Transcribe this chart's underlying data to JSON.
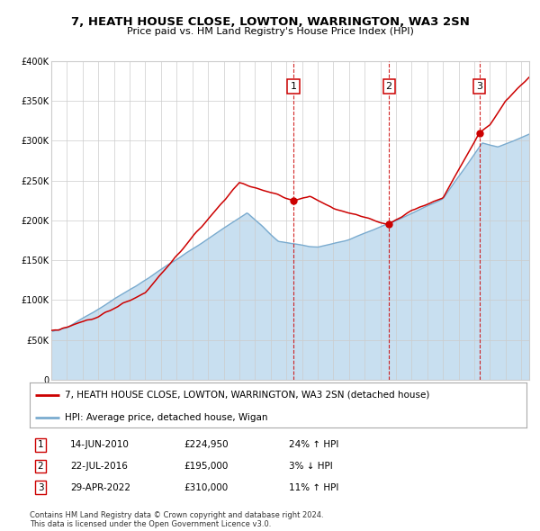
{
  "title": "7, HEATH HOUSE CLOSE, LOWTON, WARRINGTON, WA3 2SN",
  "subtitle": "Price paid vs. HM Land Registry's House Price Index (HPI)",
  "ylim": [
    0,
    400000
  ],
  "yticks": [
    0,
    50000,
    100000,
    150000,
    200000,
    250000,
    300000,
    350000,
    400000
  ],
  "ytick_labels": [
    "0",
    "£50K",
    "£100K",
    "£150K",
    "£200K",
    "£250K",
    "£300K",
    "£350K",
    "£400K"
  ],
  "xlim_start": 1995,
  "xlim_end": 2025.5,
  "sale_date_nums": [
    2010.45,
    2016.55,
    2022.33
  ],
  "sale_prices": [
    224950,
    195000,
    310000
  ],
  "sale_labels": [
    "1",
    "2",
    "3"
  ],
  "sale_info": [
    {
      "label": "1",
      "date": "14-JUN-2010",
      "price": "£224,950",
      "hpi": "24% ↑ HPI"
    },
    {
      "label": "2",
      "date": "22-JUL-2016",
      "price": "£195,000",
      "hpi": "3% ↓ HPI"
    },
    {
      "label": "3",
      "date": "29-APR-2022",
      "price": "£310,000",
      "hpi": "11% ↑ HPI"
    }
  ],
  "legend_line1": "7, HEATH HOUSE CLOSE, LOWTON, WARRINGTON, WA3 2SN (detached house)",
  "legend_line2": "HPI: Average price, detached house, Wigan",
  "footnote": "Contains HM Land Registry data © Crown copyright and database right 2024.\nThis data is licensed under the Open Government Licence v3.0.",
  "line_color_red": "#cc0000",
  "line_color_blue": "#7aabcf",
  "fill_color_blue": "#c8dff0",
  "background_color": "#ffffff",
  "grid_color": "#cccccc",
  "title_fontsize": 9.5,
  "subtitle_fontsize": 8,
  "tick_fontsize": 7,
  "legend_fontsize": 7.5,
  "table_fontsize": 7.5,
  "footnote_fontsize": 6
}
